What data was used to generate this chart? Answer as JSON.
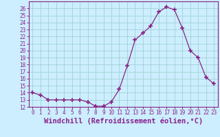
{
  "x": [
    0,
    1,
    2,
    3,
    4,
    5,
    6,
    7,
    8,
    9,
    10,
    11,
    12,
    13,
    14,
    15,
    16,
    17,
    18,
    19,
    20,
    21,
    22,
    23
  ],
  "y": [
    14.0,
    13.7,
    13.0,
    13.0,
    13.0,
    13.0,
    13.0,
    12.7,
    12.1,
    12.1,
    12.7,
    14.5,
    17.8,
    21.5,
    22.5,
    23.5,
    25.5,
    26.2,
    25.8,
    23.2,
    20.0,
    19.0,
    16.2,
    15.3
  ],
  "line_color": "#882288",
  "marker": "+",
  "marker_size": 4,
  "marker_lw": 1.2,
  "bg_color": "#cceeff",
  "grid_color": "#99cccc",
  "ylim": [
    12,
    27
  ],
  "xlim": [
    -0.5,
    23.5
  ],
  "yticks": [
    12,
    13,
    14,
    15,
    16,
    17,
    18,
    19,
    20,
    21,
    22,
    23,
    24,
    25,
    26
  ],
  "xtick_labels": [
    "0",
    "1",
    "2",
    "3",
    "4",
    "5",
    "6",
    "7",
    "8",
    "9",
    "10",
    "11",
    "12",
    "13",
    "14",
    "15",
    "16",
    "17",
    "18",
    "19",
    "20",
    "21",
    "22",
    "23"
  ],
  "xlabel": "Windchill (Refroidissement éolien,°C)",
  "font_color": "#882288",
  "tick_fontsize": 5.5,
  "label_fontsize": 7.5
}
